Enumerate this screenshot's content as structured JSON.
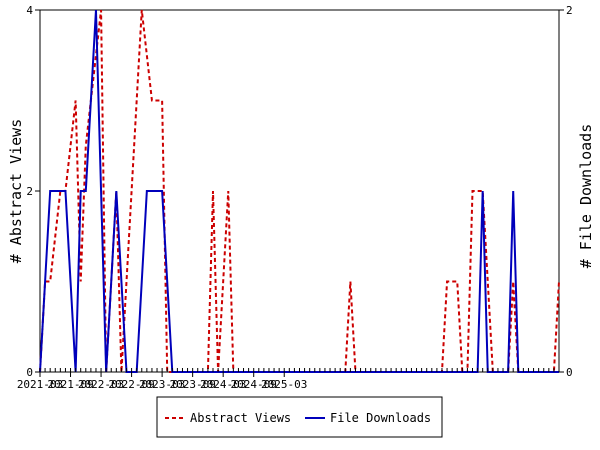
{
  "chart_data": {
    "type": "line",
    "x_start": "2021-03",
    "x_tick_labels": [
      "2021-03",
      "2021-09",
      "2022-03",
      "2022-09",
      "2023-03",
      "2023-09",
      "2024-03",
      "2024-09",
      "2025-03"
    ],
    "ylabel_left": "# Abstract Views",
    "ylabel_right": "# File Downloads",
    "ylim_left": [
      0,
      4
    ],
    "ylim_right": [
      0,
      2
    ],
    "yticks_left": [
      "0",
      "2",
      "4"
    ],
    "yticks_right": [
      "0",
      "2"
    ],
    "legend_position": "bottom-center",
    "series": [
      {
        "name": "Abstract Views",
        "axis": "left",
        "color": "#cc0000",
        "style": "dashed",
        "values": [
          0,
          1,
          1,
          1.5,
          2,
          2,
          2.5,
          3,
          1,
          2.5,
          3,
          3.5,
          4,
          0,
          1,
          2,
          0,
          1,
          2,
          3,
          4,
          3.5,
          3,
          3,
          3,
          0,
          0,
          0,
          0,
          0,
          0,
          0,
          0,
          0,
          2,
          0,
          1,
          2,
          0,
          0,
          0,
          0,
          0,
          0,
          0,
          0,
          0,
          0,
          0,
          0,
          0,
          0,
          0,
          0,
          0,
          0,
          0,
          0,
          0,
          0,
          0,
          1,
          0,
          0,
          0,
          0,
          0,
          0,
          0,
          0,
          0,
          0,
          0,
          0,
          0,
          0,
          0,
          0,
          0,
          0,
          1,
          1,
          1,
          0,
          0,
          2,
          2,
          2,
          1,
          0,
          0,
          0,
          0,
          1,
          0,
          0,
          0,
          0,
          0,
          0,
          0,
          0,
          1
        ]
      },
      {
        "name": "File Downloads",
        "axis": "right",
        "color": "#0000bb",
        "style": "solid",
        "values": [
          0,
          0.5,
          1,
          1,
          1,
          1,
          0.5,
          0,
          1,
          1,
          1.5,
          2,
          1,
          0,
          0.5,
          1,
          0.5,
          0,
          0,
          0,
          0.5,
          1,
          1,
          1,
          1,
          0.5,
          0,
          0,
          0,
          0,
          0,
          0,
          0,
          0,
          0,
          0,
          0,
          0,
          0,
          0,
          0,
          0,
          0,
          0,
          0,
          0,
          0,
          0,
          0,
          0,
          0,
          0,
          0,
          0,
          0,
          0,
          0,
          0,
          0,
          0,
          0,
          0,
          0,
          0,
          0,
          0,
          0,
          0,
          0,
          0,
          0,
          0,
          0,
          0,
          0,
          0,
          0,
          0,
          0,
          0,
          0,
          0,
          0,
          0,
          0,
          0,
          0,
          1,
          0,
          0,
          0,
          0,
          0,
          1,
          0,
          0,
          0,
          0,
          0,
          0,
          0,
          0,
          0
        ]
      }
    ]
  }
}
